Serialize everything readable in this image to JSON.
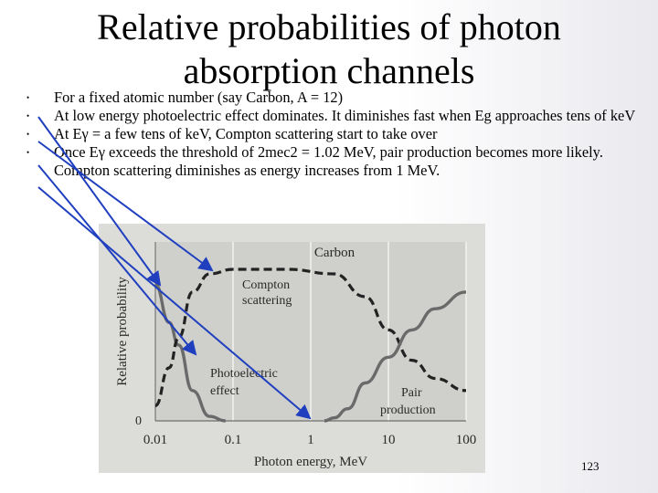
{
  "slide": {
    "title_line1": "Relative probabilities of photon",
    "title_line2": "absorption channels",
    "bullets": [
      {
        "dot": "•",
        "text": "For a fixed atomic number (say Carbon, A = 12)"
      },
      {
        "dot": "•",
        "text": "At low energy photoelectric effect dominates. It diminishes fast when Eg approaches tens of keV"
      },
      {
        "dot": "•",
        "text": "At Eγ = a few tens of keV, Compton scattering start to take over"
      },
      {
        "dot": "•",
        "text": "Once Eγ exceeds the threshold of 2mec2 = 1.02 MeV, pair production becomes more likely. Compton scattering diminishes as energy increases from 1 MeV."
      }
    ],
    "page_number": "123",
    "arrow_color": "#1f3fbf"
  },
  "chart_data": {
    "type": "line",
    "title": "Carbon",
    "xlabel": "Photon energy, MeV",
    "ylabel": "Relative probability",
    "x_scale": "log",
    "x_ticks": [
      "0.01",
      "0.1",
      "1",
      "10",
      "100"
    ],
    "y_tick_label": "0",
    "series": [
      {
        "name": "Photoelectric effect",
        "style": "solid",
        "x": [
          0.01,
          0.015,
          0.02,
          0.03,
          0.05,
          0.08
        ],
        "y": [
          0.9,
          0.65,
          0.5,
          0.2,
          0.03,
          0.0
        ]
      },
      {
        "name": "Compton scattering",
        "style": "dashed",
        "x": [
          0.01,
          0.015,
          0.02,
          0.03,
          0.05,
          0.1,
          0.5,
          2,
          5,
          10,
          20,
          40,
          100
        ],
        "y": [
          0.1,
          0.35,
          0.55,
          0.85,
          0.97,
          1.0,
          1.0,
          0.97,
          0.82,
          0.6,
          0.4,
          0.28,
          0.2
        ]
      },
      {
        "name": "Pair production",
        "style": "solid",
        "x": [
          1.5,
          2,
          3,
          5,
          10,
          20,
          40,
          100
        ],
        "y": [
          0.0,
          0.02,
          0.08,
          0.25,
          0.42,
          0.6,
          0.74,
          0.85
        ]
      }
    ],
    "annotations": [
      "Compton scattering",
      "Photoelectric effect",
      "Pair production"
    ]
  }
}
